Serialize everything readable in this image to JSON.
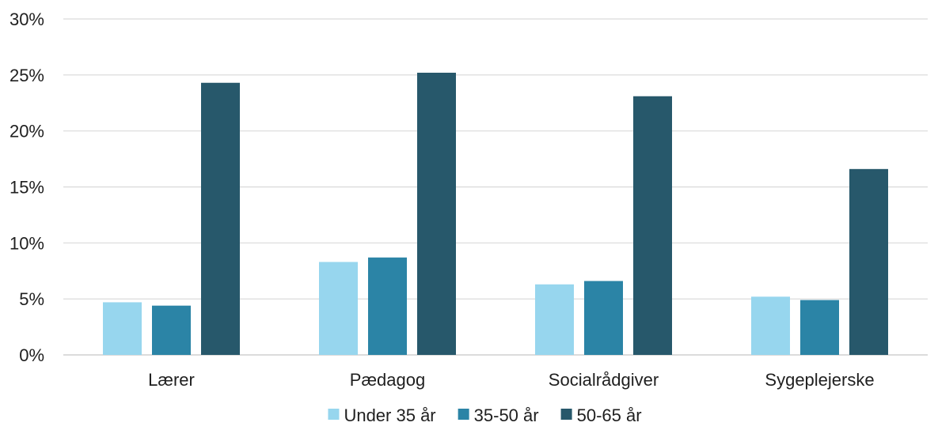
{
  "chart_data": {
    "type": "bar",
    "title": "",
    "xlabel": "",
    "ylabel": "",
    "categories": [
      "Lærer",
      "Pædagog",
      "Socialrådgiver",
      "Sygeplejerske"
    ],
    "series": [
      {
        "name": "Under 35 år",
        "color": "#97d6ee",
        "values": [
          4.7,
          8.3,
          6.3,
          5.2
        ]
      },
      {
        "name": "35-50 år",
        "color": "#2b84a6",
        "values": [
          4.4,
          8.7,
          6.6,
          4.9
        ]
      },
      {
        "name": "50-65 år",
        "color": "#27586b",
        "values": [
          24.3,
          25.2,
          23.1,
          16.6
        ]
      }
    ],
    "ylim": [
      0,
      30
    ],
    "yticks": [
      0,
      5,
      10,
      15,
      20,
      25,
      30
    ],
    "ytick_labels": [
      "0%",
      "5%",
      "10%",
      "15%",
      "20%",
      "25%",
      "30%"
    ],
    "grid": true,
    "legend_position": "bottom"
  }
}
